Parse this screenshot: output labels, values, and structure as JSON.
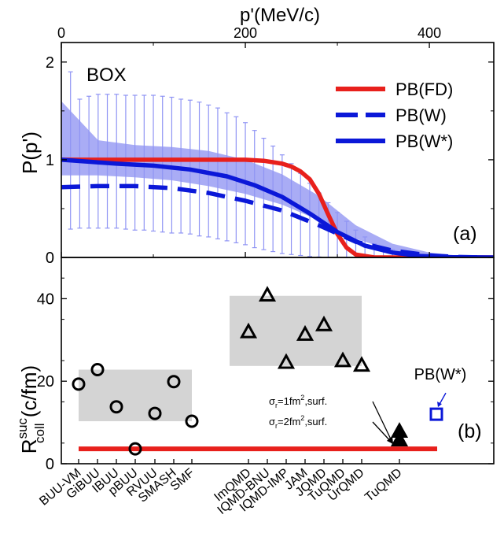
{
  "chart_data": [
    {
      "panel_label": "(a)",
      "type": "line",
      "corner_label": "BOX",
      "top_axis_label": "p'(MeV/c)",
      "ylabel_main": "P(p')",
      "xlim": [
        0,
        470
      ],
      "ylim": [
        0,
        2.2
      ],
      "xticks": [
        0,
        200,
        400
      ],
      "yticks": [
        0,
        1,
        2
      ],
      "legend_position": "top-right",
      "series": [
        {
          "name": "PB(FD)",
          "color": "#e8201c",
          "style": "solid",
          "x": [
            0,
            50,
            100,
            150,
            200,
            220,
            240,
            250,
            260,
            270,
            280,
            290,
            300,
            310,
            320,
            340,
            470
          ],
          "y": [
            1.0,
            1.0,
            1.0,
            1.0,
            1.0,
            0.99,
            0.96,
            0.93,
            0.88,
            0.8,
            0.65,
            0.44,
            0.24,
            0.1,
            0.03,
            0.0,
            0.0
          ]
        },
        {
          "name": "PB(W)",
          "color": "#0b18d8",
          "style": "dashed",
          "x": [
            0,
            40,
            80,
            120,
            160,
            200,
            240,
            280,
            320,
            360,
            400,
            430,
            460
          ],
          "y": [
            0.72,
            0.73,
            0.73,
            0.71,
            0.66,
            0.58,
            0.48,
            0.33,
            0.16,
            0.07,
            0.02,
            0.005,
            0.0
          ]
        },
        {
          "name": "PB(W*)",
          "color": "#0b18d8",
          "style": "solid",
          "x": [
            0,
            30,
            60,
            100,
            140,
            180,
            210,
            240,
            270,
            300,
            330,
            360,
            390,
            420,
            470
          ],
          "y": [
            1.0,
            0.98,
            0.96,
            0.94,
            0.9,
            0.83,
            0.74,
            0.62,
            0.45,
            0.26,
            0.12,
            0.05,
            0.015,
            0.003,
            0.0
          ]
        }
      ],
      "band": {
        "x": [
          0,
          40,
          80,
          120,
          160,
          200,
          240,
          280,
          320,
          360,
          400,
          430,
          460
        ],
        "upper": [
          1.6,
          1.2,
          1.15,
          1.13,
          1.09,
          1.0,
          0.85,
          0.63,
          0.33,
          0.14,
          0.05,
          0.02,
          0.0
        ],
        "lower": [
          0.84,
          0.84,
          0.82,
          0.79,
          0.73,
          0.65,
          0.54,
          0.38,
          0.19,
          0.07,
          0.02,
          0.005,
          0.0
        ]
      },
      "errorbars": {
        "x": [
          10,
          20,
          30,
          40,
          50,
          60,
          70,
          80,
          90,
          100,
          110,
          120,
          130,
          140,
          150,
          160,
          170,
          180,
          190,
          200,
          210,
          220,
          230,
          240,
          250,
          260,
          270,
          280,
          290,
          300,
          310,
          320,
          330,
          340,
          350,
          360,
          370,
          380,
          390
        ],
        "upper": [
          1.9,
          1.62,
          1.65,
          1.67,
          1.67,
          1.67,
          1.66,
          1.66,
          1.66,
          1.66,
          1.65,
          1.64,
          1.62,
          1.61,
          1.59,
          1.56,
          1.53,
          1.48,
          1.44,
          1.38,
          1.3,
          1.22,
          1.14,
          1.05,
          0.96,
          0.86,
          0.76,
          0.66,
          0.56,
          0.46,
          0.37,
          0.28,
          0.21,
          0.14,
          0.1,
          0.08,
          0.06,
          0.04,
          0.02
        ],
        "lower": [
          0.29,
          0.3,
          0.3,
          0.3,
          0.3,
          0.3,
          0.29,
          0.28,
          0.28,
          0.27,
          0.26,
          0.25,
          0.25,
          0.24,
          0.22,
          0.21,
          0.19,
          0.17,
          0.15,
          0.13,
          0.1,
          0.08,
          0.06,
          0.04,
          0.03,
          0.02,
          0.01,
          0.005,
          0.0,
          0.0,
          0.0,
          0.0,
          0.0,
          0.0,
          0.0,
          0.0,
          0.0,
          0.0,
          0.0
        ]
      }
    },
    {
      "panel_label": "(b)",
      "type": "scatter",
      "ylabel_base": "R",
      "ylabel_sup": "suc",
      "ylabel_sub": "coll",
      "ylabel_units": " (c/fm)",
      "ylim": [
        0,
        50
      ],
      "yticks": [
        0,
        20,
        40
      ],
      "categories": [
        "BUU-VM",
        "GiBUU",
        "IBUU",
        "pBUU",
        "RVUU",
        "SMASH",
        "SMF",
        "ImQMD",
        "IQMD-BNU",
        "IQMD-IMP",
        "JAM",
        "JQMD",
        "TuQMD",
        "UrQMD",
        "TuQMD"
      ],
      "circles": {
        "categories": [
          "BUU-VM",
          "GiBUU",
          "IBUU",
          "pBUU",
          "RVUU",
          "SMASH",
          "SMF"
        ],
        "values": [
          19.3,
          22.8,
          13.8,
          3.6,
          12.2,
          19.9,
          10.3
        ]
      },
      "triangles": {
        "categories": [
          "ImQMD",
          "IQMD-BNU",
          "IQMD-IMP",
          "JAM",
          "JQMD",
          "TuQMD",
          "UrQMD"
        ],
        "values": [
          31.8,
          40.7,
          24.4,
          31.2,
          33.5,
          24.8,
          23.7
        ]
      },
      "filled_triangles": {
        "category": "TuQMD",
        "values": [
          7.7,
          5.6
        ]
      },
      "reference_line": {
        "value": 3.6,
        "color": "#e8201c"
      },
      "square": {
        "label": "PB(W*)",
        "value": 12.0,
        "color": "#0b18d8"
      },
      "annotations": [
        {
          "sigma": "σ",
          "sub": "r",
          "eq": "=1fm",
          "sup": "2",
          "tail": ",surf."
        },
        {
          "sigma": "σ",
          "sub": "r",
          "eq": "=2fm",
          "sup": "2",
          "tail": ",surf."
        }
      ]
    }
  ]
}
